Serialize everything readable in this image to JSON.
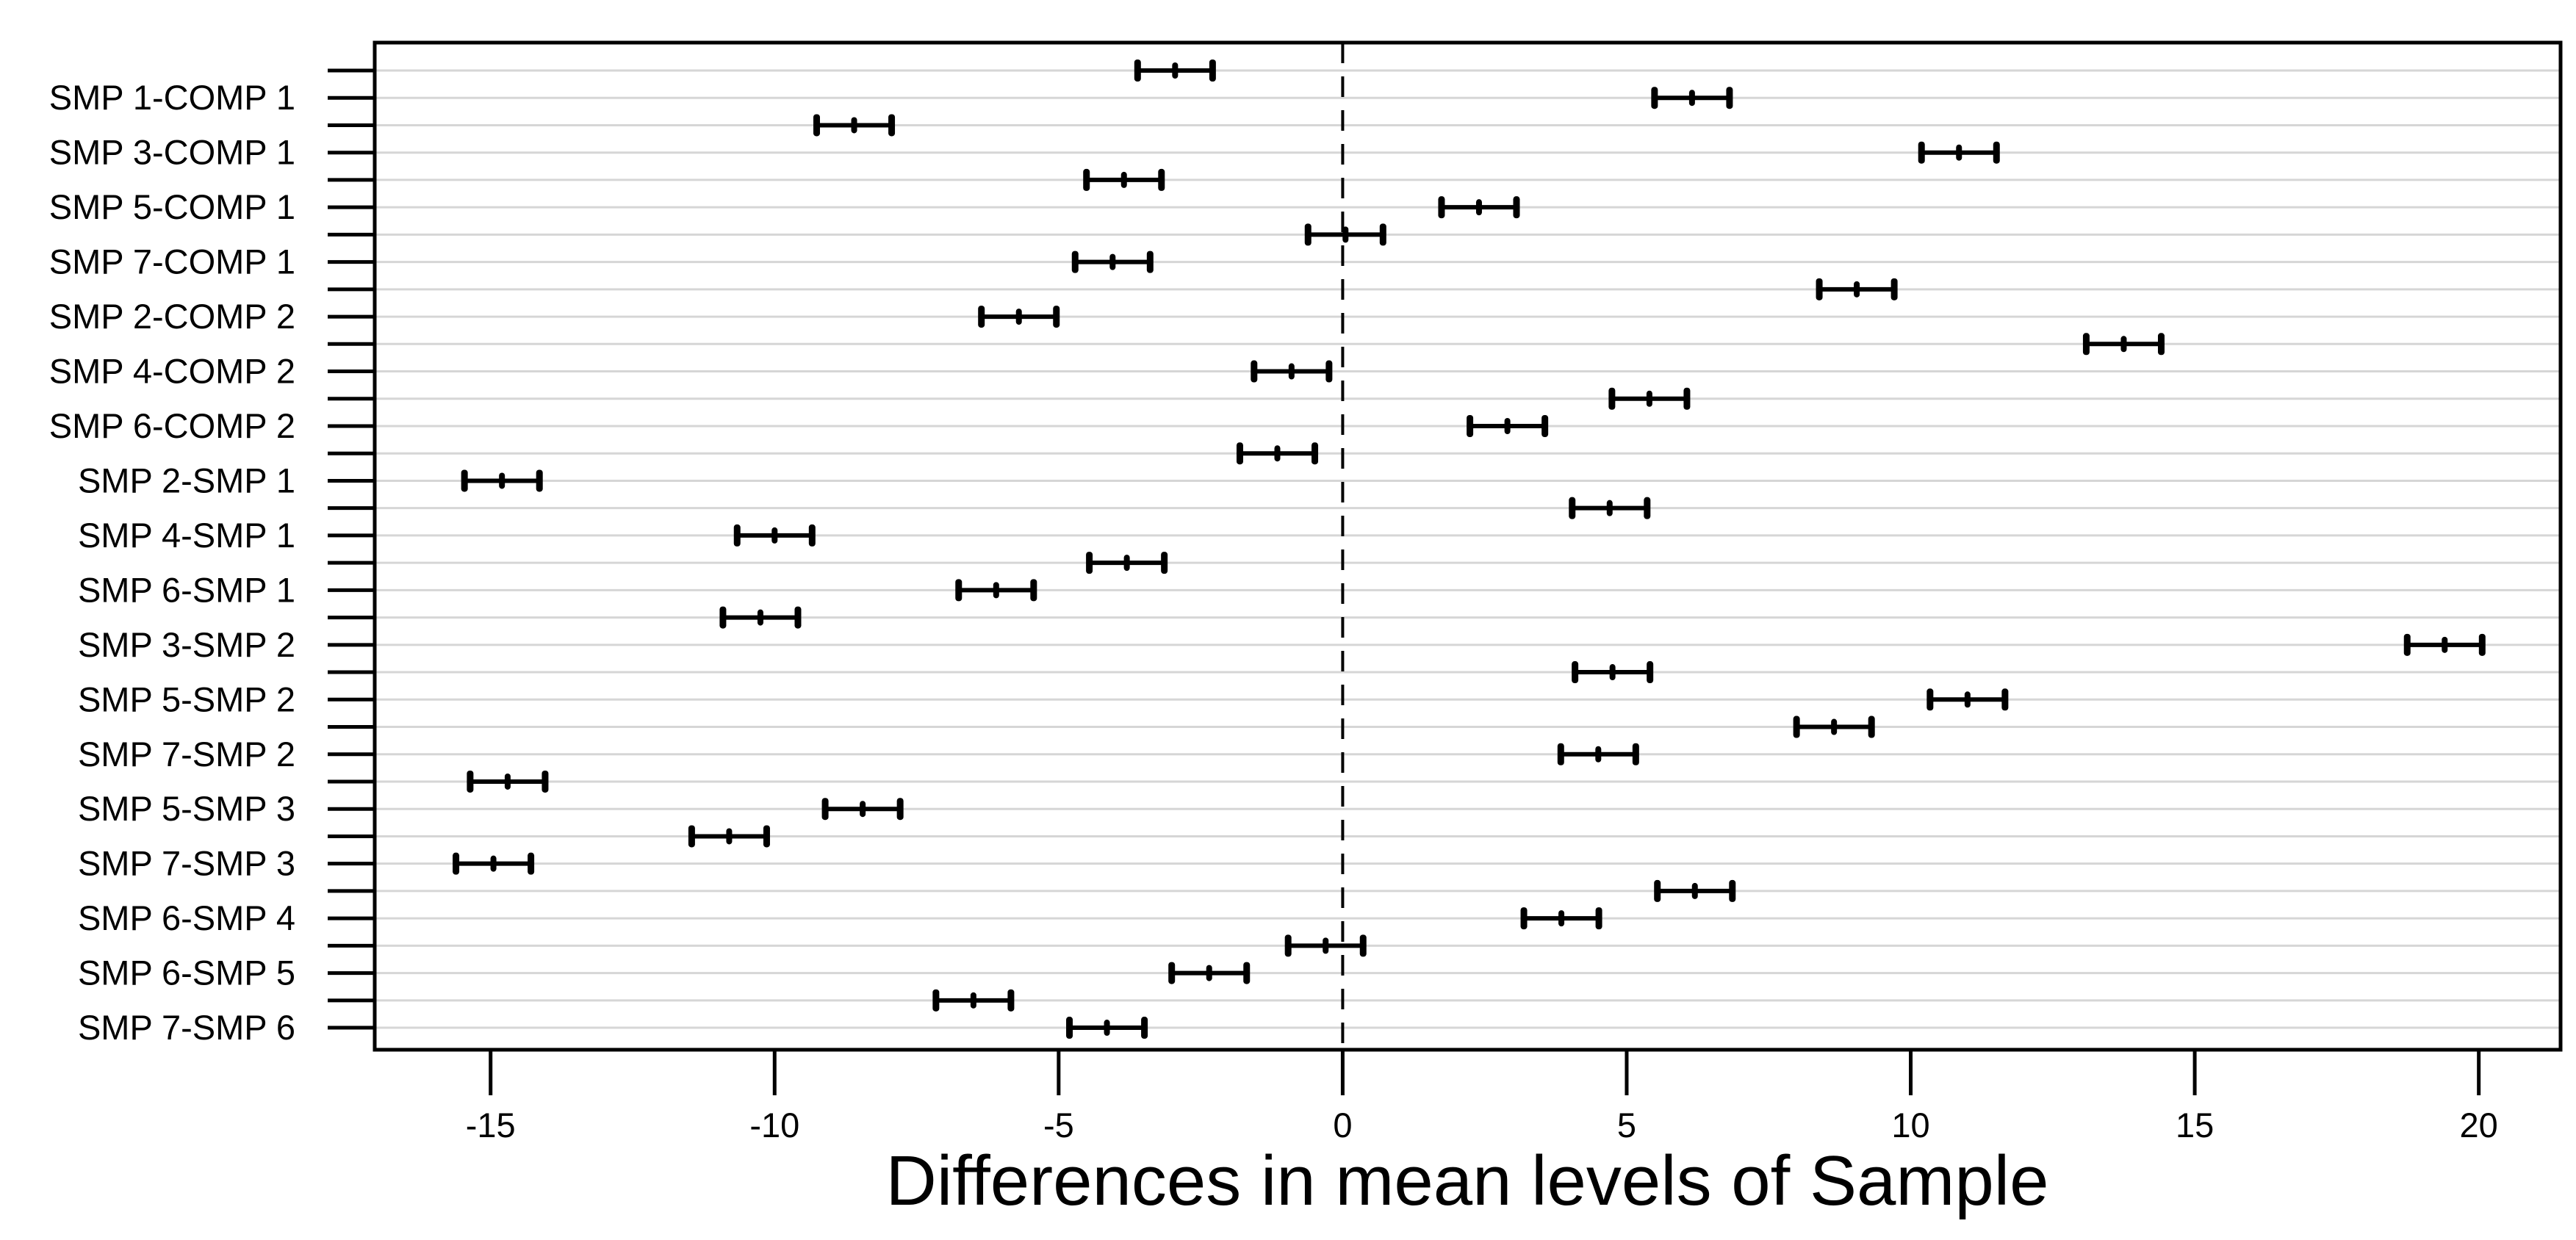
{
  "chart_data": {
    "type": "errorbar",
    "title": "",
    "xlabel": "Differences in mean levels of Sample",
    "ylabel": "",
    "xlim": [
      -17.04,
      21.44
    ],
    "x_ticks": [
      -15,
      -10,
      -5,
      0,
      5,
      10,
      15,
      20
    ],
    "zero_reference": 0,
    "grid": true,
    "orientation": "horizontal",
    "legend": "none",
    "rows": [
      {
        "label": "",
        "lwr": -3.61,
        "diff": -2.95,
        "upr": -2.29
      },
      {
        "label": "SMP 1-COMP 1",
        "lwr": 5.49,
        "diff": 6.15,
        "upr": 6.81
      },
      {
        "label": "",
        "lwr": -9.26,
        "diff": -8.6,
        "upr": -7.94
      },
      {
        "label": "SMP 3-COMP 1",
        "lwr": 10.19,
        "diff": 10.85,
        "upr": 11.51
      },
      {
        "label": "",
        "lwr": -4.51,
        "diff": -3.85,
        "upr": -3.19
      },
      {
        "label": "SMP 5-COMP 1",
        "lwr": 1.74,
        "diff": 2.4,
        "upr": 3.06
      },
      {
        "label": "",
        "lwr": -0.61,
        "diff": 0.05,
        "upr": 0.71
      },
      {
        "label": "SMP 7-COMP 1",
        "lwr": -4.71,
        "diff": -4.05,
        "upr": -3.39
      },
      {
        "label": "",
        "lwr": 8.39,
        "diff": 9.05,
        "upr": 9.71
      },
      {
        "label": "SMP 2-COMP 2",
        "lwr": -6.36,
        "diff": -5.7,
        "upr": -5.04
      },
      {
        "label": "",
        "lwr": 13.09,
        "diff": 13.75,
        "upr": 14.41
      },
      {
        "label": "SMP 4-COMP 2",
        "lwr": -1.56,
        "diff": -0.9,
        "upr": -0.24
      },
      {
        "label": "",
        "lwr": 4.74,
        "diff": 5.4,
        "upr": 6.06
      },
      {
        "label": "SMP 6-COMP 2",
        "lwr": 2.24,
        "diff": 2.9,
        "upr": 3.56
      },
      {
        "label": "",
        "lwr": -1.81,
        "diff": -1.15,
        "upr": -0.49
      },
      {
        "label": "SMP 2-SMP 1",
        "lwr": -15.46,
        "diff": -14.8,
        "upr": -14.14
      },
      {
        "label": "",
        "lwr": 4.04,
        "diff": 4.7,
        "upr": 5.36
      },
      {
        "label": "SMP 4-SMP 1",
        "lwr": -10.66,
        "diff": -10.0,
        "upr": -9.34
      },
      {
        "label": "",
        "lwr": -4.46,
        "diff": -3.8,
        "upr": -3.14
      },
      {
        "label": "SMP 6-SMP 1",
        "lwr": -6.76,
        "diff": -6.1,
        "upr": -5.44
      },
      {
        "label": "",
        "lwr": -10.91,
        "diff": -10.25,
        "upr": -9.59
      },
      {
        "label": "SMP 3-SMP 2",
        "lwr": 18.74,
        "diff": 19.4,
        "upr": 20.06
      },
      {
        "label": "",
        "lwr": 4.09,
        "diff": 4.75,
        "upr": 5.41
      },
      {
        "label": "SMP 5-SMP 2",
        "lwr": 10.34,
        "diff": 11.0,
        "upr": 11.66
      },
      {
        "label": "",
        "lwr": 7.99,
        "diff": 8.65,
        "upr": 9.31
      },
      {
        "label": "SMP 7-SMP 2",
        "lwr": 3.84,
        "diff": 4.5,
        "upr": 5.16
      },
      {
        "label": "",
        "lwr": -15.36,
        "diff": -14.7,
        "upr": -14.04
      },
      {
        "label": "SMP 5-SMP 3",
        "lwr": -9.11,
        "diff": -8.45,
        "upr": -7.79
      },
      {
        "label": "",
        "lwr": -11.46,
        "diff": -10.8,
        "upr": -10.14
      },
      {
        "label": "SMP 7-SMP 3",
        "lwr": -15.61,
        "diff": -14.95,
        "upr": -14.29
      },
      {
        "label": "",
        "lwr": 5.54,
        "diff": 6.2,
        "upr": 6.86
      },
      {
        "label": "SMP 6-SMP 4",
        "lwr": 3.19,
        "diff": 3.85,
        "upr": 4.51
      },
      {
        "label": "",
        "lwr": -0.96,
        "diff": -0.3,
        "upr": 0.36
      },
      {
        "label": "SMP 6-SMP 5",
        "lwr": -3.01,
        "diff": -2.35,
        "upr": -1.69
      },
      {
        "label": "",
        "lwr": -7.16,
        "diff": -6.5,
        "upr": -5.84
      },
      {
        "label": "SMP 7-SMP 6",
        "lwr": -4.81,
        "diff": -4.15,
        "upr": -3.49
      }
    ]
  }
}
